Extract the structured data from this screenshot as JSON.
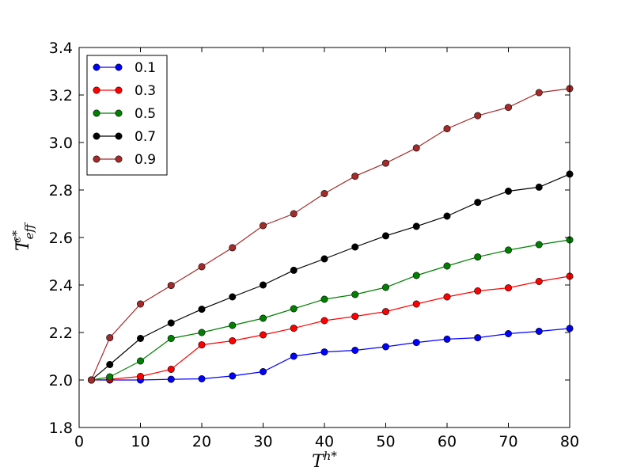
{
  "chart_data": {
    "type": "line",
    "xlabel": "T",
    "xlabel_sup": "h*",
    "ylabel": "T",
    "ylabel_sub": "eff",
    "ylabel_sup": "c*",
    "xlim": [
      0,
      80
    ],
    "ylim": [
      1.8,
      3.4
    ],
    "xticks": [
      "0",
      "10",
      "20",
      "30",
      "40",
      "50",
      "60",
      "70",
      "80"
    ],
    "yticks": [
      "1.8",
      "2.0",
      "2.2",
      "2.4",
      "2.6",
      "2.8",
      "3.0",
      "3.2",
      "3.4"
    ],
    "grid": false,
    "legend_position": "top-left",
    "x": [
      2,
      5,
      10,
      15,
      20,
      25,
      30,
      35,
      40,
      45,
      50,
      55,
      60,
      65,
      70,
      75,
      80
    ],
    "series": [
      {
        "name": "0.1",
        "color": "#0000ff",
        "values": [
          2.0,
          2.0,
          2.0,
          2.003,
          2.005,
          2.017,
          2.035,
          2.1,
          2.118,
          2.125,
          2.14,
          2.158,
          2.172,
          2.178,
          2.195,
          2.205,
          2.217
        ]
      },
      {
        "name": "0.3",
        "color": "#ff0000",
        "values": [
          2.0,
          2.003,
          2.015,
          2.045,
          2.148,
          2.165,
          2.19,
          2.218,
          2.25,
          2.268,
          2.288,
          2.32,
          2.35,
          2.375,
          2.388,
          2.415,
          2.437
        ]
      },
      {
        "name": "0.5",
        "color": "#008000",
        "values": [
          2.0,
          2.013,
          2.08,
          2.175,
          2.2,
          2.23,
          2.26,
          2.3,
          2.34,
          2.36,
          2.39,
          2.44,
          2.48,
          2.518,
          2.547,
          2.57,
          2.59
        ]
      },
      {
        "name": "0.7",
        "color": "#000000",
        "values": [
          2.0,
          2.065,
          2.175,
          2.24,
          2.298,
          2.35,
          2.4,
          2.462,
          2.51,
          2.56,
          2.607,
          2.647,
          2.69,
          2.748,
          2.795,
          2.812,
          2.867
        ]
      },
      {
        "name": "0.9",
        "color": "#a52a2a",
        "values": [
          2.0,
          2.178,
          2.32,
          2.398,
          2.477,
          2.557,
          2.65,
          2.7,
          2.785,
          2.858,
          2.913,
          2.977,
          3.058,
          3.113,
          3.148,
          3.21,
          3.227
        ]
      }
    ]
  }
}
